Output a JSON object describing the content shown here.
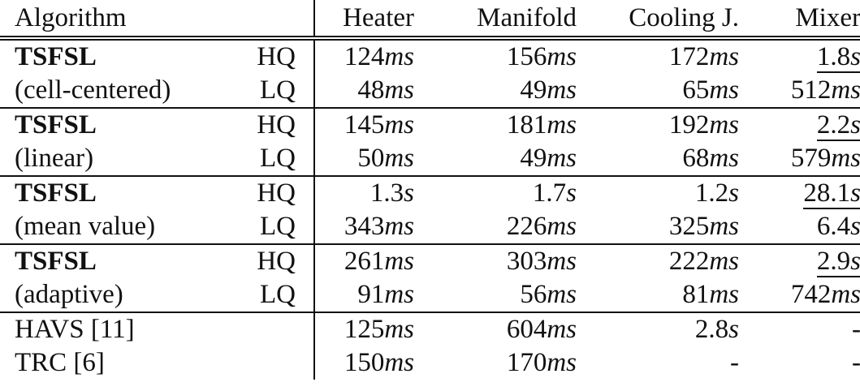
{
  "header": {
    "algorithm": "Algorithm",
    "quality": "",
    "columns": [
      "Heater",
      "Manifold",
      "Cooling J.",
      "Mixer"
    ]
  },
  "rows": [
    {
      "name": "TSFSL",
      "bold": true,
      "quality": "HQ",
      "group_start": true,
      "values": [
        {
          "n": "124",
          "u": "ms"
        },
        {
          "n": "156",
          "u": "ms"
        },
        {
          "n": "172",
          "u": "ms"
        },
        {
          "n": "1.8",
          "u": "s"
        }
      ]
    },
    {
      "name": "(cell-centered)",
      "bold": false,
      "quality": "LQ",
      "group_start": false,
      "values": [
        {
          "n": "48",
          "u": "ms"
        },
        {
          "n": "49",
          "u": "ms"
        },
        {
          "n": "65",
          "u": "ms"
        },
        {
          "n": "512",
          "u": "ms"
        }
      ]
    },
    {
      "name": "TSFSL",
      "bold": true,
      "quality": "HQ",
      "group_start": true,
      "values": [
        {
          "n": "145",
          "u": "ms"
        },
        {
          "n": "181",
          "u": "ms"
        },
        {
          "n": "192",
          "u": "ms"
        },
        {
          "n": "2.2",
          "u": "s"
        }
      ]
    },
    {
      "name": "(linear)",
      "bold": false,
      "quality": "LQ",
      "group_start": false,
      "values": [
        {
          "n": "50",
          "u": "ms"
        },
        {
          "n": "49",
          "u": "ms"
        },
        {
          "n": "68",
          "u": "ms"
        },
        {
          "n": "579",
          "u": "ms"
        }
      ]
    },
    {
      "name": "TSFSL",
      "bold": true,
      "quality": "HQ",
      "group_start": true,
      "values": [
        {
          "n": "1.3",
          "u": "s"
        },
        {
          "n": "1.7",
          "u": "s"
        },
        {
          "n": "1.2",
          "u": "s"
        },
        {
          "n": "28.1",
          "u": "s"
        }
      ]
    },
    {
      "name": "(mean value)",
      "bold": false,
      "quality": "LQ",
      "group_start": false,
      "values": [
        {
          "n": "343",
          "u": "ms"
        },
        {
          "n": "226",
          "u": "ms"
        },
        {
          "n": "325",
          "u": "ms"
        },
        {
          "n": "6.4",
          "u": "s"
        }
      ]
    },
    {
      "name": "TSFSL",
      "bold": true,
      "quality": "HQ",
      "group_start": true,
      "values": [
        {
          "n": "261",
          "u": "ms"
        },
        {
          "n": "303",
          "u": "ms"
        },
        {
          "n": "222",
          "u": "ms"
        },
        {
          "n": "2.9",
          "u": "s"
        }
      ]
    },
    {
      "name": "(adaptive)",
      "bold": false,
      "quality": "LQ",
      "group_start": false,
      "values": [
        {
          "n": "91",
          "u": "ms"
        },
        {
          "n": "56",
          "u": "ms"
        },
        {
          "n": "81",
          "u": "ms"
        },
        {
          "n": "742",
          "u": "ms"
        }
      ]
    },
    {
      "name": "HAVS [11]",
      "bold": false,
      "quality": "",
      "group_start": true,
      "values": [
        {
          "n": "125",
          "u": "ms"
        },
        {
          "n": "604",
          "u": "ms"
        },
        {
          "n": "2.8",
          "u": "s"
        },
        {
          "n": "-",
          "u": ""
        }
      ]
    },
    {
      "name": "TRC [6]",
      "bold": false,
      "quality": "",
      "group_start": false,
      "values": [
        {
          "n": "150",
          "u": "ms"
        },
        {
          "n": "170",
          "u": "ms"
        },
        {
          "n": "-",
          "u": ""
        },
        {
          "n": "-",
          "u": ""
        }
      ]
    }
  ]
}
